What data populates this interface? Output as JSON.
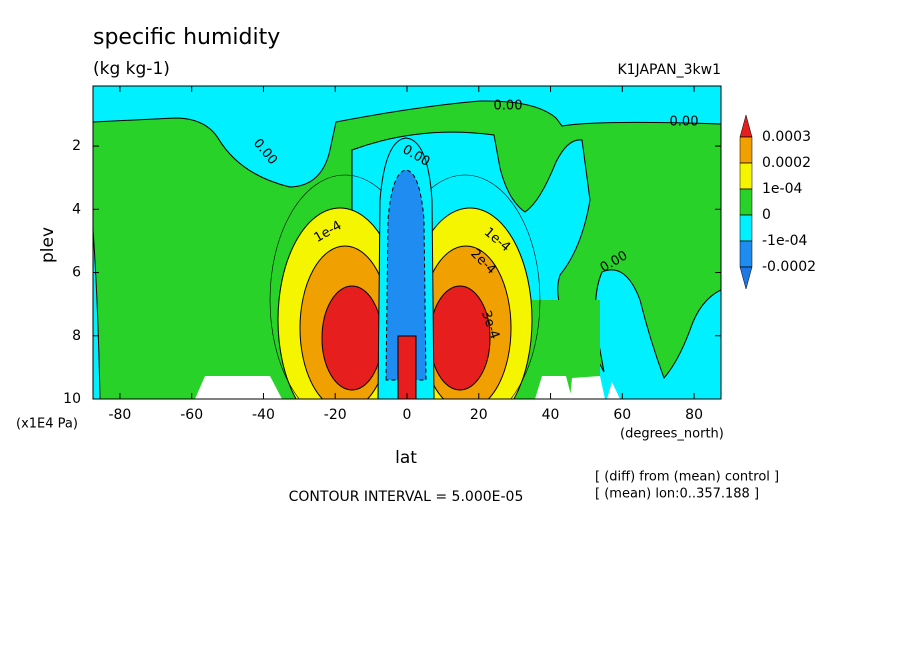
{
  "chart_data": {
    "type": "contour",
    "title": "specific humidity",
    "subtitle": "(kg kg-1)",
    "experiment": "K1JAPAN_3kw1",
    "x_label": "lat",
    "x_unit": "(degrees_north)",
    "y_label": "plev",
    "y_unit": "(x1E4 Pa)",
    "xlim": [
      -87.5,
      87.5
    ],
    "xticks": [
      -80,
      -60,
      -40,
      -20,
      0,
      20,
      40,
      60,
      80
    ],
    "ylim": [
      10,
      0.1
    ],
    "yticks": [
      2,
      4,
      6,
      8,
      10
    ],
    "colorbar": {
      "levels": [
        0.0003,
        0.0002,
        {
          "value": 0.0001,
          "label": "1e-04"
        },
        0,
        {
          "value": -0.0001,
          "label": "-1e-04"
        },
        -0.0002
      ],
      "colors": [
        "#e61e1e",
        "#f0a000",
        "#f5f500",
        "#28d228",
        "#00f0ff",
        "#1e8cf0",
        "#1e78e6"
      ]
    },
    "contour_labels": [
      "0.00",
      "0.00",
      "0.00",
      "0.00",
      "0.00",
      "1e-4",
      "1e-4",
      "2e-4",
      "3e-4"
    ],
    "footer": "CONTOUR INTERVAL = 5.000E-05",
    "notes": [
      "[ (diff) from (mean) control ]",
      "[ (mean) lon:0..357.188 ]"
    ]
  }
}
